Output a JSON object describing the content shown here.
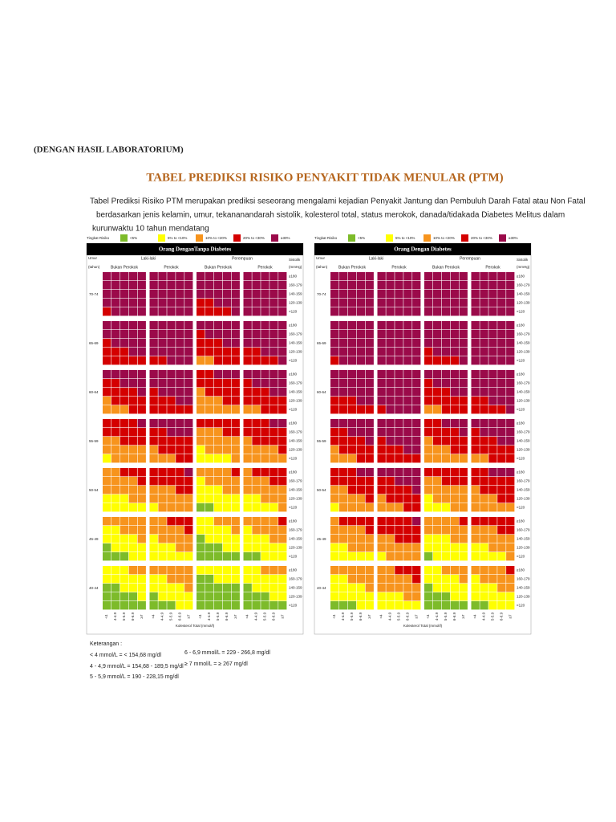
{
  "heading": "(DENGAN HASIL LABORATORIUM)",
  "title": "TABEL PREDIKSI RISIKO PENYAKIT TIDAK MENULAR (PTM)",
  "intro": [
    "Tabel Prediksi Risiko PTM merupakan prediksi seseorang mengalami kejadian Penyakit Jantung dan Pembuluh Darah Fatal atau Non Fatal",
    "berdasarkan jenis kelamin, umur, tekananandarah sistolik, kolesterol total, status merokok, danada/tidakada Diabetes Melitus dalam",
    "kurunwaktu 10 tahun mendatang"
  ],
  "legend": {
    "label": "Tingkat Risiko",
    "items": [
      {
        "label": "<5%",
        "color": "#7dbb2a"
      },
      {
        "label": "5% to <10%",
        "color": "#ffff00"
      },
      {
        "label": "10% to <20%",
        "color": "#f7941d"
      },
      {
        "label": "20% to <30%",
        "color": "#d40000"
      },
      {
        "label": "≥30%",
        "color": "#9b0a4a"
      }
    ]
  },
  "panels": [
    {
      "title": "Orang DenganTanpa Diabetes"
    },
    {
      "title": "Orang Dengan Diabetes"
    }
  ],
  "age_header": "Umur",
  "age_unit": "(tahun)",
  "bp_header": "Sistolik",
  "bp_unit": "(mmHg)",
  "sex": [
    "Laki-laki",
    "Perempuan"
  ],
  "smoking": [
    "Bukan Perokok",
    "Perokok"
  ],
  "ages": [
    "70-74",
    "65-69",
    "60-64",
    "55-59",
    "50-54",
    "45-49",
    "40-44"
  ],
  "bp": [
    "≥180",
    "160-179",
    "140-159",
    "120-139",
    "<120"
  ],
  "cholesterol": [
    "<4",
    "4-4.9",
    "5-5.9",
    "6-6.9",
    "≥7"
  ],
  "x_label": "Kolesterol Total (mmol/l)",
  "notes": {
    "title": "Keterangan :",
    "items": [
      "< 4 mmol/L = < 154,68 mg/dl",
      "4 - 4,9 mmol/L = 154,68 - 189,5 mg/dl",
      "5 - 5,9 mmol/L = 190 - 228,15 mg/dl",
      "6 - 6,9 mmol/L = 229 - 266,8 mg/dl",
      "≥ 7 mmol/L = ≥ 267 mg/dl"
    ]
  }
}
